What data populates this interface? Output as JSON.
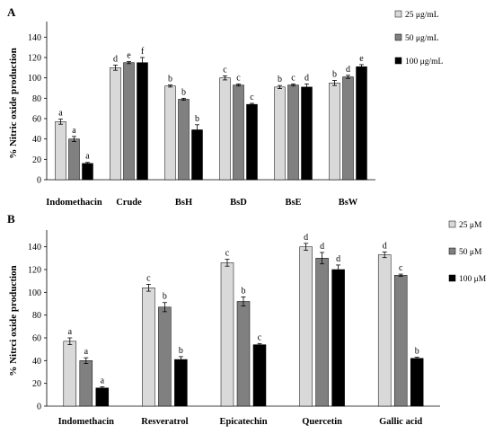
{
  "chart_data": [
    {
      "type": "bar",
      "panel_label": "A",
      "ylabel": "% Nitric oxide production",
      "ylim": [
        0,
        150
      ],
      "yticks": [
        0,
        20,
        40,
        60,
        80,
        100,
        120,
        140
      ],
      "categories": [
        "Indomethacin",
        "Crude",
        "BsH",
        "BsD",
        "BsE",
        "BsW"
      ],
      "legend_position": "right",
      "series": [
        {
          "name": "25 μg/mL",
          "color": "#d9d9d9",
          "values": [
            57,
            110,
            92,
            100,
            91,
            95
          ],
          "errors": [
            2.5,
            2.5,
            1,
            2,
            1.5,
            2.5
          ],
          "letters": [
            "a",
            "d",
            "b",
            "c",
            "b",
            "b"
          ]
        },
        {
          "name": "50 μg/mL",
          "color": "#808080",
          "values": [
            40,
            115,
            79,
            93,
            93,
            101
          ],
          "errors": [
            2.5,
            1,
            1,
            1,
            1,
            1.5
          ],
          "letters": [
            "a",
            "e",
            "b",
            "c",
            "c",
            "d"
          ]
        },
        {
          "name": "100 μg/mL",
          "color": "#000000",
          "values": [
            16,
            115,
            49,
            74,
            91,
            111
          ],
          "errors": [
            1,
            5,
            5,
            1,
            3,
            2
          ],
          "letters": [
            "a",
            "f",
            "b",
            "c",
            "d",
            "e"
          ]
        }
      ]
    },
    {
      "type": "bar",
      "panel_label": "B",
      "ylabel": "% Nitrci oxide production",
      "ylim": [
        0,
        150
      ],
      "yticks": [
        0,
        20,
        40,
        60,
        80,
        100,
        120,
        140
      ],
      "categories": [
        "Indomethacin",
        "Resveratrol",
        "Epicatechin",
        "Quercetin",
        "Gallic acid"
      ],
      "legend_position": "right",
      "series": [
        {
          "name": "25 μM",
          "color": "#d9d9d9",
          "values": [
            57,
            104,
            126,
            140,
            133
          ],
          "errors": [
            3,
            3,
            3,
            3,
            2.5
          ],
          "letters": [
            "a",
            "c",
            "c",
            "d",
            "d"
          ]
        },
        {
          "name": "50 μM",
          "color": "#808080",
          "values": [
            40,
            87,
            92,
            130,
            115
          ],
          "errors": [
            2.5,
            4,
            4,
            5,
            1
          ],
          "letters": [
            "a",
            "b",
            "b",
            "d",
            "c"
          ]
        },
        {
          "name": "100 μM",
          "color": "#000000",
          "values": [
            16,
            41,
            54,
            120,
            42
          ],
          "errors": [
            1,
            2.5,
            1,
            4,
            1
          ],
          "letters": [
            "a",
            "b",
            "c",
            "d",
            "b"
          ]
        }
      ]
    }
  ]
}
